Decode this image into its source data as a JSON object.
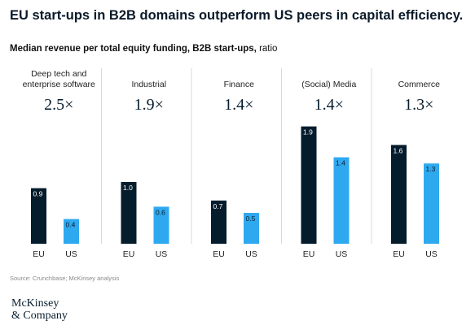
{
  "title": "EU start-ups in B2B domains outperform US peers in capital efficiency.",
  "subtitle_bold": "Median revenue per total equity funding, B2B start-ups,",
  "subtitle_unit": " ratio",
  "source": "Source: Crunchbase; McKinsey analysis",
  "logo": {
    "line1": "McKinsey",
    "line2": "& Company"
  },
  "colors": {
    "eu": "#051c2c",
    "us": "#2ea9f0",
    "divider": "#d9d9d9",
    "label": "#ffffff"
  },
  "chart_data": {
    "type": "bar",
    "series": [
      {
        "name": "EU",
        "color": "#051c2c"
      },
      {
        "name": "US",
        "color": "#2ea9f0"
      }
    ],
    "ylim": [
      0,
      2.0
    ],
    "panels": [
      {
        "category": [
          "Deep tech and",
          "enterprise software"
        ],
        "ratio": "2.5×",
        "values": [
          0.9,
          0.4
        ],
        "labels": [
          "0.9",
          "0.4"
        ]
      },
      {
        "category": [
          "Industrial"
        ],
        "ratio": "1.9×",
        "values": [
          1.0,
          0.6
        ],
        "labels": [
          "1.0",
          "0.6"
        ]
      },
      {
        "category": [
          "Finance"
        ],
        "ratio": "1.4×",
        "values": [
          0.7,
          0.5
        ],
        "labels": [
          "0.7",
          "0.5"
        ]
      },
      {
        "category": [
          "(Social) Media"
        ],
        "ratio": "1.4×",
        "values": [
          1.9,
          1.4
        ],
        "labels": [
          "1.9",
          "1.4"
        ]
      },
      {
        "category": [
          "Commerce"
        ],
        "ratio": "1.3×",
        "values": [
          1.6,
          1.3
        ],
        "labels": [
          "1.6",
          "1.3"
        ]
      }
    ],
    "x_labels": [
      "EU",
      "US"
    ]
  }
}
